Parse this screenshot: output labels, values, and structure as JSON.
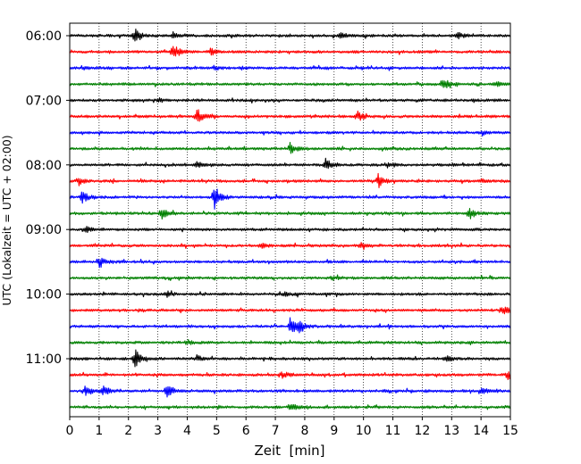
{
  "chart_data": {
    "type": "line",
    "title": "",
    "xlabel": "Zeit  [min]",
    "ylabel": "UTC (Lokalzeit = UTC + 02:00)",
    "xlim": [
      0,
      15
    ],
    "x_ticks": [
      "0",
      "1",
      "2",
      "3",
      "4",
      "5",
      "6",
      "7",
      "8",
      "9",
      "10",
      "11",
      "12",
      "13",
      "14",
      "15"
    ],
    "y_ticks": [
      "06:00",
      "07:00",
      "08:00",
      "09:00",
      "10:00",
      "11:00"
    ],
    "grid": "vertical dotted lines at each minute",
    "legend": "none",
    "trace_interval_minutes": 15,
    "trace_colors": [
      "#000000",
      "#ff0000",
      "#0000ff",
      "#008000"
    ],
    "traces": [
      {
        "start": "06:00",
        "color": "#000000",
        "events": [
          [
            2.2,
            1.0
          ],
          [
            3.5,
            0.4
          ],
          [
            9.2,
            0.45
          ],
          [
            13.2,
            0.4
          ]
        ]
      },
      {
        "start": "06:15",
        "color": "#ff0000",
        "events": [
          [
            3.5,
            1.0
          ],
          [
            4.8,
            0.35
          ]
        ]
      },
      {
        "start": "06:30",
        "color": "#0000ff",
        "events": [
          [
            0.4,
            0.2
          ],
          [
            4.9,
            0.2
          ]
        ]
      },
      {
        "start": "06:45",
        "color": "#008000",
        "events": [
          [
            12.7,
            0.75
          ],
          [
            14.5,
            0.3
          ]
        ]
      },
      {
        "start": "07:00",
        "color": "#000000",
        "events": [
          [
            3.0,
            0.2
          ]
        ]
      },
      {
        "start": "07:15",
        "color": "#ff0000",
        "events": [
          [
            4.3,
            1.0
          ],
          [
            9.8,
            0.6
          ]
        ]
      },
      {
        "start": "07:30",
        "color": "#0000ff",
        "events": [
          [
            14.0,
            0.2
          ]
        ]
      },
      {
        "start": "07:45",
        "color": "#008000",
        "events": [
          [
            7.5,
            0.6
          ]
        ]
      },
      {
        "start": "08:00",
        "color": "#000000",
        "events": [
          [
            4.3,
            0.35
          ],
          [
            8.7,
            0.7
          ],
          [
            10.8,
            0.35
          ]
        ]
      },
      {
        "start": "08:15",
        "color": "#ff0000",
        "events": [
          [
            0.3,
            0.5
          ],
          [
            10.5,
            0.8
          ],
          [
            14.0,
            0.2
          ]
        ]
      },
      {
        "start": "08:30",
        "color": "#0000ff",
        "events": [
          [
            0.4,
            0.75
          ],
          [
            4.9,
            1.6
          ]
        ]
      },
      {
        "start": "08:45",
        "color": "#008000",
        "events": [
          [
            3.1,
            0.7
          ],
          [
            13.6,
            0.6
          ]
        ]
      },
      {
        "start": "09:00",
        "color": "#000000",
        "events": [
          [
            0.5,
            0.4
          ]
        ]
      },
      {
        "start": "09:15",
        "color": "#ff0000",
        "events": [
          [
            6.5,
            0.3
          ],
          [
            9.9,
            0.4
          ]
        ]
      },
      {
        "start": "09:30",
        "color": "#0000ff",
        "events": [
          [
            1.0,
            0.6
          ]
        ]
      },
      {
        "start": "09:45",
        "color": "#008000",
        "events": [
          [
            8.9,
            0.2
          ]
        ]
      },
      {
        "start": "10:00",
        "color": "#000000",
        "events": [
          [
            3.3,
            0.35
          ],
          [
            7.3,
            0.3
          ]
        ]
      },
      {
        "start": "10:15",
        "color": "#ff0000",
        "events": [
          [
            14.7,
            0.5
          ]
        ]
      },
      {
        "start": "10:30",
        "color": "#0000ff",
        "events": [
          [
            7.5,
            1.0
          ],
          [
            7.8,
            0.6
          ]
        ]
      },
      {
        "start": "10:45",
        "color": "#008000",
        "events": [
          [
            4.0,
            0.3
          ]
        ]
      },
      {
        "start": "11:00",
        "color": "#000000",
        "events": [
          [
            2.2,
            1.2
          ],
          [
            4.3,
            0.4
          ],
          [
            12.8,
            0.4
          ]
        ]
      },
      {
        "start": "11:15",
        "color": "#ff0000",
        "events": [
          [
            7.2,
            0.45
          ],
          [
            14.9,
            0.5
          ]
        ]
      },
      {
        "start": "11:30",
        "color": "#0000ff",
        "events": [
          [
            0.5,
            0.7
          ],
          [
            1.1,
            0.6
          ],
          [
            3.3,
            1.0
          ],
          [
            14.0,
            0.45
          ]
        ]
      },
      {
        "start": "11:45",
        "color": "#008000",
        "events": [
          [
            7.5,
            0.4
          ]
        ]
      }
    ]
  }
}
